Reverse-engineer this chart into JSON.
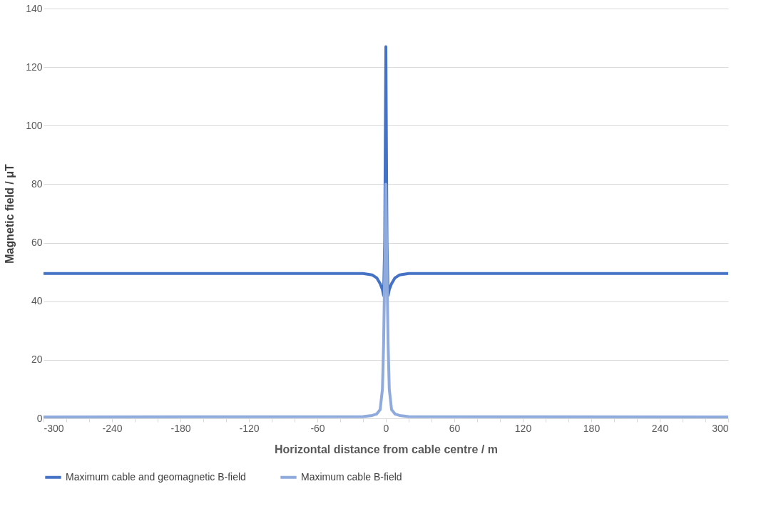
{
  "chart_data": {
    "type": "line",
    "xlabel": "Horizontal distance from cable centre / m",
    "ylabel": "Magnetic field / μT",
    "xlim": [
      -300,
      300
    ],
    "ylim": [
      0,
      140
    ],
    "xticks": [
      -300,
      {
        "value": -280,
        "label": null
      },
      {
        "value": -260,
        "label": null
      },
      -240,
      {
        "value": -220,
        "label": null
      },
      {
        "value": -200,
        "label": null
      },
      -180,
      {
        "value": -160,
        "label": null
      },
      {
        "value": -140,
        "label": null
      },
      -120,
      {
        "value": -100,
        "label": null
      },
      {
        "value": -80,
        "label": null
      },
      -60,
      {
        "value": -40,
        "label": null
      },
      {
        "value": -20,
        "label": null
      },
      0,
      {
        "value": 20,
        "label": null
      },
      {
        "value": 40,
        "label": null
      },
      60,
      {
        "value": 80,
        "label": null
      },
      {
        "value": 100,
        "label": null
      },
      120,
      {
        "value": 140,
        "label": null
      },
      {
        "value": 160,
        "label": null
      },
      180,
      {
        "value": 200,
        "label": null
      },
      {
        "value": 220,
        "label": null
      },
      240,
      {
        "value": 260,
        "label": null
      },
      {
        "value": 280,
        "label": null
      },
      300
    ],
    "yticks": [
      0,
      20,
      40,
      60,
      80,
      100,
      120,
      140
    ],
    "grid": "y",
    "legend": "bottom",
    "marker": "none",
    "line_style": "solid",
    "series": [
      {
        "name": "Maximum cable and geomagnetic B-field",
        "color": "#4472c4",
        "x": [
          -300,
          -20,
          -12,
          -8,
          -5,
          -3,
          -2,
          -1,
          0,
          1,
          2,
          3,
          5,
          8,
          12,
          20,
          300
        ],
        "values": [
          49.5,
          49.5,
          49,
          48,
          46,
          44,
          42,
          60,
          127,
          60,
          42,
          44,
          46,
          48,
          49,
          49.5,
          49.5
        ]
      },
      {
        "name": "Maximum cable B-field",
        "color": "#8faadc",
        "x": [
          -300,
          -20,
          -12,
          -8,
          -5,
          -3,
          -2,
          -1,
          0,
          1,
          2,
          3,
          5,
          8,
          12,
          20,
          300
        ],
        "values": [
          0.5,
          0.6,
          1,
          1.5,
          3,
          10,
          25,
          50,
          80,
          50,
          25,
          10,
          3,
          1.5,
          1,
          0.6,
          0.5
        ]
      }
    ]
  }
}
